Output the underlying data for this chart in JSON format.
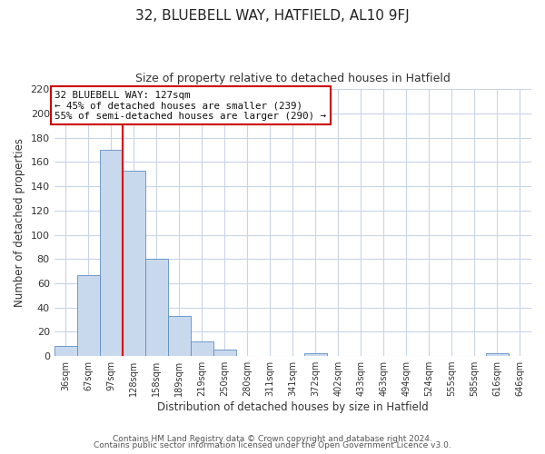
{
  "title": "32, BLUEBELL WAY, HATFIELD, AL10 9FJ",
  "subtitle": "Size of property relative to detached houses in Hatfield",
  "xlabel": "Distribution of detached houses by size in Hatfield",
  "ylabel": "Number of detached properties",
  "bar_labels": [
    "36sqm",
    "67sqm",
    "97sqm",
    "128sqm",
    "158sqm",
    "189sqm",
    "219sqm",
    "250sqm",
    "280sqm",
    "311sqm",
    "341sqm",
    "372sqm",
    "402sqm",
    "433sqm",
    "463sqm",
    "494sqm",
    "524sqm",
    "555sqm",
    "585sqm",
    "616sqm",
    "646sqm"
  ],
  "bar_values": [
    8,
    67,
    170,
    153,
    80,
    33,
    12,
    5,
    0,
    0,
    0,
    2,
    0,
    0,
    0,
    0,
    0,
    0,
    0,
    2,
    0
  ],
  "bar_color": "#c9d9ed",
  "bar_edge_color": "#5b8ec4",
  "vline_color": "#dd0000",
  "annotation_title": "32 BLUEBELL WAY: 127sqm",
  "annotation_line1": "← 45% of detached houses are smaller (239)",
  "annotation_line2": "55% of semi-detached houses are larger (290) →",
  "annotation_box_edge": "#cc0000",
  "ylim": [
    0,
    220
  ],
  "yticks": [
    0,
    20,
    40,
    60,
    80,
    100,
    120,
    140,
    160,
    180,
    200,
    220
  ],
  "footnote1": "Contains HM Land Registry data © Crown copyright and database right 2024.",
  "footnote2": "Contains public sector information licensed under the Open Government Licence v3.0.",
  "background_color": "#ffffff",
  "grid_color": "#c8d4e8"
}
